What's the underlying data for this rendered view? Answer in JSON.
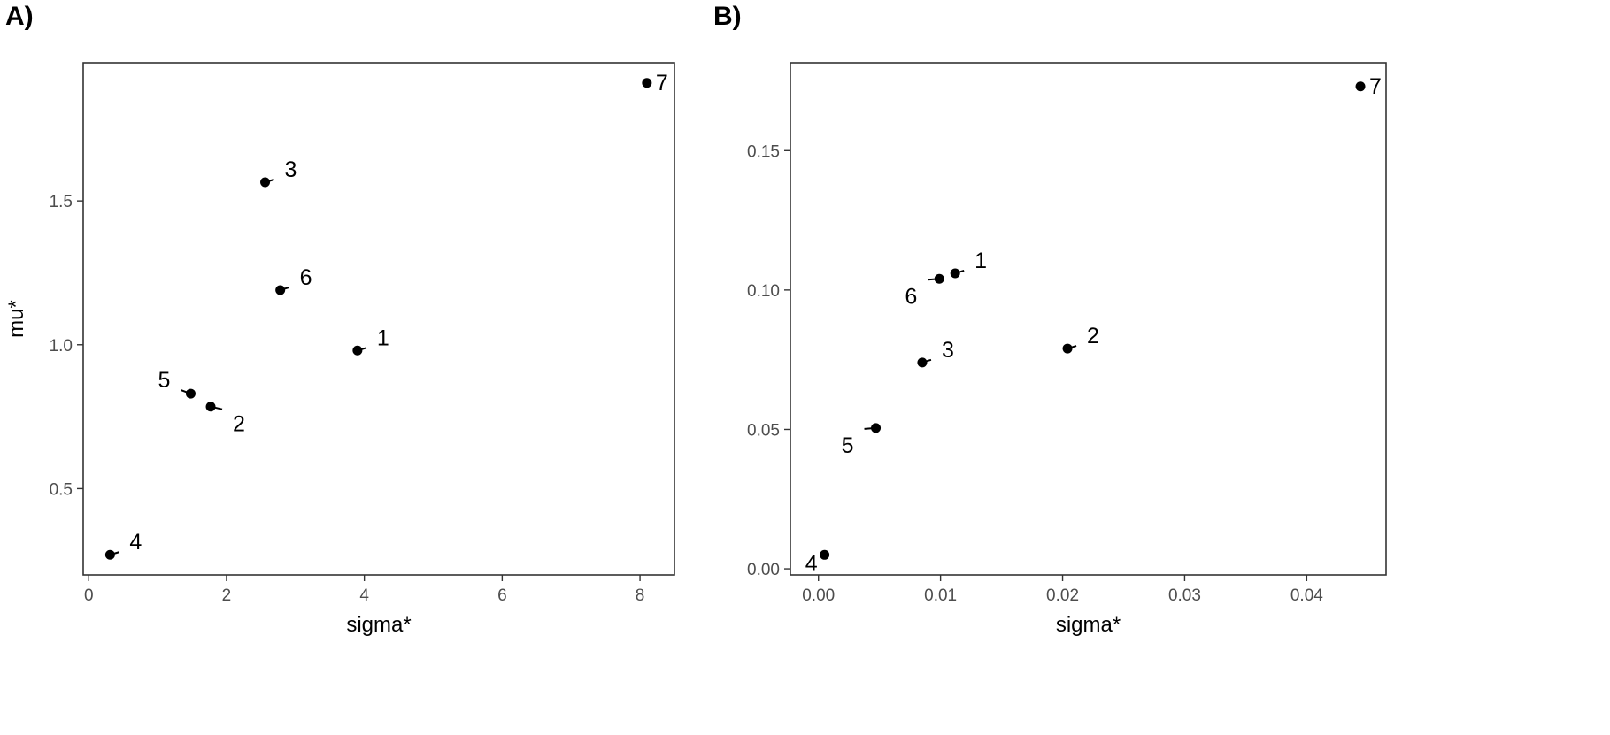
{
  "chart_data": [
    {
      "type": "scatter",
      "panel_label": "A)",
      "xlabel": "sigma*",
      "ylabel": "mu*",
      "xlim": [
        -0.08,
        8.5
      ],
      "ylim": [
        0.2,
        1.98
      ],
      "x_ticks": [
        0,
        2,
        4,
        6,
        8
      ],
      "x_tick_labels": [
        "0",
        "2",
        "4",
        "6",
        "8"
      ],
      "y_ticks": [
        0.5,
        1.0,
        1.5
      ],
      "y_tick_labels": [
        "0.5",
        "1.0",
        "1.5"
      ],
      "grid": false,
      "points": [
        {
          "label": "1",
          "x": 3.9,
          "y": 0.98,
          "label_pos": "upper-right"
        },
        {
          "label": "2",
          "x": 1.77,
          "y": 0.785,
          "label_pos": "lower-right"
        },
        {
          "label": "3",
          "x": 2.56,
          "y": 1.565,
          "label_pos": "upper-right"
        },
        {
          "label": "4",
          "x": 0.31,
          "y": 0.27,
          "label_pos": "upper-right"
        },
        {
          "label": "5",
          "x": 1.48,
          "y": 0.83,
          "label_pos": "upper-left"
        },
        {
          "label": "6",
          "x": 2.78,
          "y": 1.19,
          "label_pos": "upper-right"
        },
        {
          "label": "7",
          "x": 8.1,
          "y": 1.91,
          "label_pos": "right"
        }
      ]
    },
    {
      "type": "scatter",
      "panel_label": "B)",
      "xlabel": "sigma*",
      "ylabel": "",
      "xlim": [
        -0.0023,
        0.0465
      ],
      "ylim": [
        -0.0022,
        0.1815
      ],
      "x_ticks": [
        0.0,
        0.01,
        0.02,
        0.03,
        0.04
      ],
      "x_tick_labels": [
        "0.00",
        "0.01",
        "0.02",
        "0.03",
        "0.04"
      ],
      "y_ticks": [
        0.0,
        0.05,
        0.1,
        0.15
      ],
      "y_tick_labels": [
        "0.00",
        "0.05",
        "0.10",
        "0.15"
      ],
      "grid": false,
      "points": [
        {
          "label": "1",
          "x": 0.0112,
          "y": 0.106,
          "label_pos": "upper-right"
        },
        {
          "label": "2",
          "x": 0.0204,
          "y": 0.079,
          "label_pos": "upper-right"
        },
        {
          "label": "3",
          "x": 0.0085,
          "y": 0.074,
          "label_pos": "upper-right"
        },
        {
          "label": "4",
          "x": 0.0005,
          "y": 0.005,
          "label_pos": "left"
        },
        {
          "label": "5",
          "x": 0.0047,
          "y": 0.0505,
          "label_pos": "lower-left"
        },
        {
          "label": "6",
          "x": 0.0099,
          "y": 0.104,
          "label_pos": "lower-left"
        },
        {
          "label": "7",
          "x": 0.0444,
          "y": 0.173,
          "label_pos": "right"
        }
      ]
    }
  ]
}
